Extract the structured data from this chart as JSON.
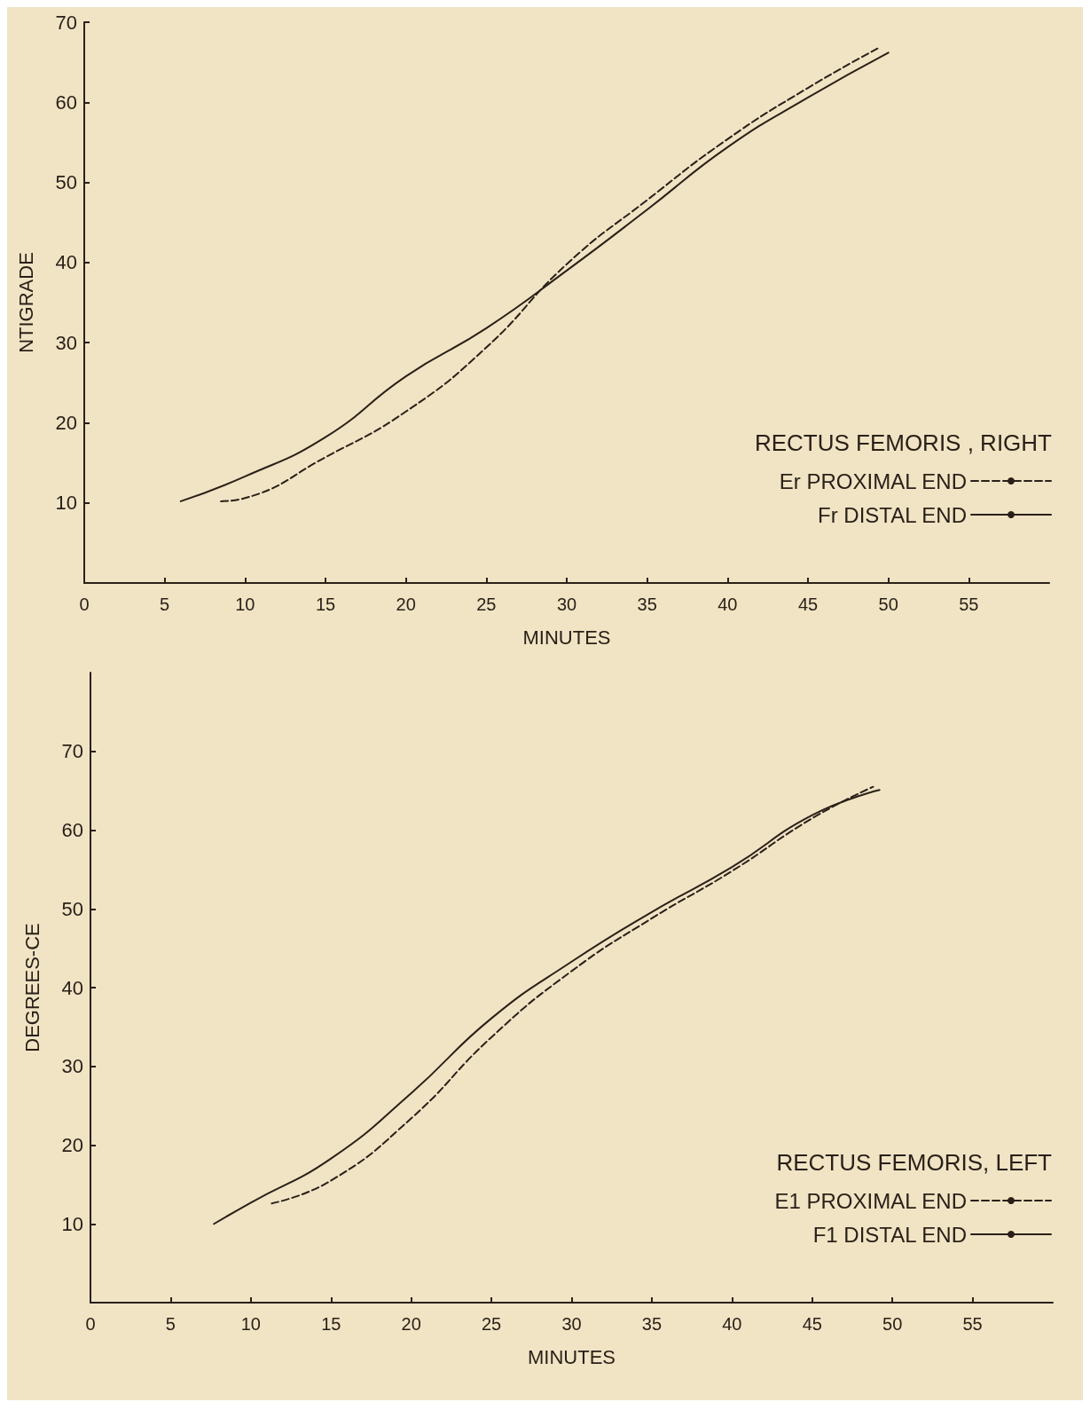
{
  "chart_data": [
    {
      "type": "line",
      "legend_title": "RECTUS FEMORIS , RIGHT",
      "xlabel": "MINUTES",
      "ylabel": "NTIGRADE",
      "xlim": [
        0,
        60
      ],
      "xticks": [
        0,
        5,
        10,
        15,
        20,
        25,
        30,
        35,
        40,
        45,
        50,
        55
      ],
      "ylim": [
        0,
        70
      ],
      "yticks": [
        {
          "value": 0,
          "label": null
        },
        10,
        20,
        30,
        40,
        50,
        60,
        70
      ],
      "grid": false,
      "legend": "bottom right",
      "marker": "none",
      "series": [
        {
          "name": "Er PROXIMAL END",
          "color": "#2a2018",
          "line_style": "dashed",
          "x": [
            8.5,
            10,
            15,
            20,
            25,
            30,
            35,
            40,
            45,
            49.5
          ],
          "values": [
            10.2,
            10.6,
            15.7,
            21.4,
            29.4,
            39.8,
            47.8,
            55.4,
            61.8,
            66.9
          ]
        },
        {
          "name": "Fr DISTAL END",
          "color": "#2a2018",
          "line_style": "solid",
          "x": [
            6,
            10,
            15,
            20,
            25,
            30,
            35,
            40,
            45,
            50
          ],
          "values": [
            10.2,
            13.3,
            18.2,
            25.8,
            31.8,
            39,
            46.6,
            54.4,
            60.6,
            66.2
          ]
        }
      ]
    },
    {
      "type": "line",
      "legend_title": "RECTUS FEMORIS, LEFT",
      "xlabel": "MINUTES",
      "ylabel": "DEGREES-CE",
      "xlim": [
        0,
        60
      ],
      "xticks": [
        0,
        5,
        10,
        15,
        20,
        25,
        30,
        35,
        40,
        45,
        50,
        55
      ],
      "ylim": [
        0,
        80
      ],
      "yticks": [
        {
          "value": 0,
          "label": null
        },
        10,
        20,
        30,
        40,
        50,
        60,
        70
      ],
      "grid": false,
      "legend": "bottom right",
      "marker": "none",
      "series": [
        {
          "name": "E1 PROXIMAL END",
          "color": "#2a2018",
          "line_style": "dashed",
          "x": [
            11.3,
            15,
            20,
            25,
            30,
            35,
            40,
            45,
            48.8
          ],
          "values": [
            12.6,
            15.5,
            23.4,
            33.7,
            42.1,
            48.8,
            54.8,
            61.5,
            65.5
          ]
        },
        {
          "name": "F1 DISTAL END",
          "color": "#2a2018",
          "line_style": "solid",
          "x": [
            7.7,
            10,
            15,
            20,
            25,
            30,
            35,
            40,
            45,
            49.2
          ],
          "values": [
            10,
            12.7,
            18.3,
            26.6,
            36.1,
            43.3,
            49.6,
            55.3,
            61.9,
            65.1
          ]
        }
      ]
    }
  ]
}
